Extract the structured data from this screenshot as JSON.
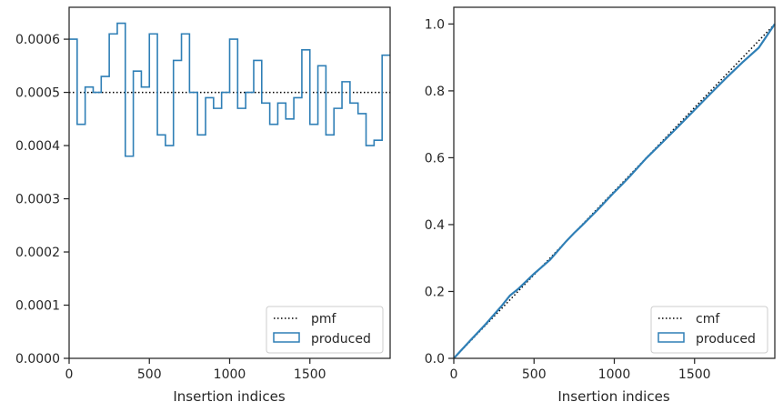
{
  "chart_data": [
    {
      "type": "line",
      "subtype": "step-histogram",
      "xlabel": "Insertion indices",
      "ylabel": "",
      "xlim": [
        0,
        2000
      ],
      "ylim": [
        0,
        0.00066
      ],
      "x_ticks": [
        0,
        500,
        1000,
        1500
      ],
      "x_tick_labels": [
        "0",
        "500",
        "1000",
        "1500"
      ],
      "y_ticks": [
        0,
        0.0001,
        0.0002,
        0.0003,
        0.0004,
        0.0005,
        0.0006
      ],
      "y_tick_labels": [
        "0.0000",
        "0.0001",
        "0.0002",
        "0.0003",
        "0.0004",
        "0.0005",
        "0.0006"
      ],
      "grid": false,
      "legend_position": "bottom-right",
      "bin_edges": [
        0,
        50,
        100,
        150,
        200,
        250,
        300,
        350,
        400,
        450,
        500,
        550,
        600,
        650,
        700,
        750,
        800,
        850,
        900,
        950,
        1000,
        1050,
        1100,
        1150,
        1200,
        1250,
        1300,
        1350,
        1400,
        1450,
        1500,
        1550,
        1600,
        1650,
        1700,
        1750,
        1800,
        1850,
        1900,
        1950,
        2000
      ],
      "series": [
        {
          "name": "pmf",
          "style": "dotted",
          "color": "#000000",
          "x": [
            0,
            2000
          ],
          "y": [
            0.0005,
            0.0005
          ]
        },
        {
          "name": "produced",
          "style": "step",
          "color": "#2f7fb6",
          "values": [
            0.0006,
            0.00044,
            0.00051,
            0.0005,
            0.00053,
            0.00061,
            0.00063,
            0.00038,
            0.00054,
            0.00051,
            0.00061,
            0.00042,
            0.0004,
            0.00056,
            0.00061,
            0.0005,
            0.00042,
            0.00049,
            0.00047,
            0.0005,
            0.0006,
            0.00047,
            0.0005,
            0.00056,
            0.00048,
            0.00044,
            0.00048,
            0.00045,
            0.00049,
            0.00058,
            0.00044,
            0.00055,
            0.00042,
            0.00047,
            0.00052,
            0.00048,
            0.00046,
            0.0004,
            0.00041,
            0.00057
          ]
        }
      ]
    },
    {
      "type": "line",
      "subtype": "cumulative",
      "xlabel": "Insertion indices",
      "ylabel": "",
      "xlim": [
        0,
        2000
      ],
      "ylim": [
        0,
        1.05
      ],
      "x_ticks": [
        0,
        500,
        1000,
        1500
      ],
      "x_tick_labels": [
        "0",
        "500",
        "1000",
        "1500"
      ],
      "y_ticks": [
        0,
        0.2,
        0.4,
        0.6,
        0.8,
        1.0
      ],
      "y_tick_labels": [
        "0.0",
        "0.2",
        "0.4",
        "0.6",
        "0.8",
        "1.0"
      ],
      "grid": false,
      "legend_position": "bottom-right",
      "series": [
        {
          "name": "cmf",
          "style": "dotted",
          "color": "#000000",
          "x": [
            0,
            2000
          ],
          "y": [
            0,
            1.0
          ]
        },
        {
          "name": "produced",
          "style": "solid",
          "color": "#2f7fb6",
          "x": [
            0,
            100,
            200,
            300,
            350,
            400,
            500,
            550,
            600,
            700,
            750,
            800,
            900,
            1000,
            1050,
            1100,
            1200,
            1300,
            1400,
            1500,
            1600,
            1700,
            1800,
            1900,
            2000
          ],
          "y": [
            0,
            0.052,
            0.103,
            0.158,
            0.188,
            0.207,
            0.253,
            0.274,
            0.295,
            0.35,
            0.375,
            0.398,
            0.446,
            0.497,
            0.521,
            0.546,
            0.599,
            0.646,
            0.694,
            0.743,
            0.792,
            0.84,
            0.886,
            0.929,
            1.0
          ]
        }
      ]
    }
  ]
}
